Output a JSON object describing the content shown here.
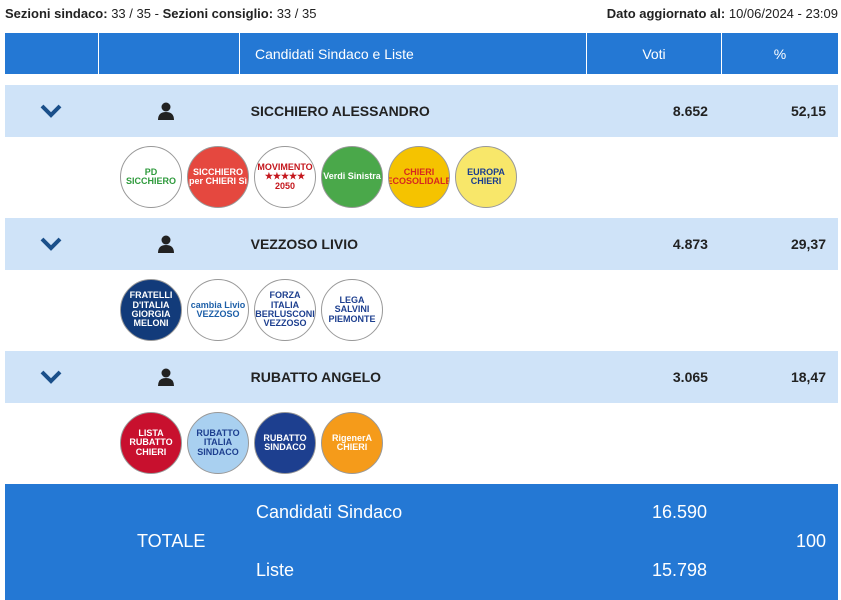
{
  "status": {
    "sez_sindaco_label": "Sezioni sindaco:",
    "sez_sindaco": "33 / 35",
    "sep": "-",
    "sez_consiglio_label": "Sezioni consiglio:",
    "sez_consiglio": "33 / 35",
    "updated_label": "Dato aggiornato al:",
    "updated": "10/06/2024 - 23:09"
  },
  "header": {
    "candidates": "Candidati Sindaco e Liste",
    "votes": "Voti",
    "percent": "%"
  },
  "icons": {
    "expand": "chevron-down-icon",
    "person": "user-icon"
  },
  "colors": {
    "header": "#2478d4",
    "candidate_row": "#cfe3f8",
    "chevron": "#1a4f8a"
  },
  "candidates": [
    {
      "name": "SICCHIERO ALESSANDRO",
      "votes": "8.652",
      "percent": "52,15",
      "lists": [
        {
          "name": "partito-democratico",
          "logo_text": "PD SICCHIERO",
          "bg": "#ffffff",
          "fg": "#2e9a3c"
        },
        {
          "name": "sicchiero-per-chieri",
          "logo_text": "SICCHIERO per CHIERI Sì",
          "bg": "#e5483f",
          "fg": "#ffffff"
        },
        {
          "name": "movimento-2050",
          "logo_text": "MOVIMENTO ★★★★★ 2050",
          "bg": "#ffffff",
          "fg": "#c4161c"
        },
        {
          "name": "alleanza-verdi-sinistra",
          "logo_text": "Verdi Sinistra",
          "bg": "#4aa84a",
          "fg": "#ffffff"
        },
        {
          "name": "chieri-ecosolidale",
          "logo_text": "CHIERI ECOSOLIDALE",
          "bg": "#f5c300",
          "fg": "#d6281f"
        },
        {
          "name": "europa-chieri",
          "logo_text": "EUROPA CHIERI",
          "bg": "#f8e76a",
          "fg": "#1a3d8f"
        }
      ]
    },
    {
      "name": "VEZZOSO LIVIO",
      "votes": "4.873",
      "percent": "29,37",
      "lists": [
        {
          "name": "fratelli-italia",
          "logo_text": "FRATELLI D'ITALIA GIORGIA MELONI",
          "bg": "#123b7a",
          "fg": "#ffffff"
        },
        {
          "name": "chieri-cambia",
          "logo_text": "cambia Livio VEZZOSO",
          "bg": "#ffffff",
          "fg": "#1d5fa8"
        },
        {
          "name": "forza-italia",
          "logo_text": "FORZA ITALIA BERLUSCONI VEZZOSO",
          "bg": "#ffffff",
          "fg": "#1d3f8f"
        },
        {
          "name": "lega",
          "logo_text": "LEGA SALVINI PIEMONTE",
          "bg": "#ffffff",
          "fg": "#1d3f8f"
        }
      ]
    },
    {
      "name": "RUBATTO ANGELO",
      "votes": "3.065",
      "percent": "18,47",
      "lists": [
        {
          "name": "lista-rubatto",
          "logo_text": "LISTA RUBATTO CHIERI",
          "bg": "#c8102e",
          "fg": "#ffffff"
        },
        {
          "name": "rubatto-italia-sindaco",
          "logo_text": "RUBATTO ITALIA SINDACO",
          "bg": "#a9d0f0",
          "fg": "#1d3f8f"
        },
        {
          "name": "progetto-ospedale",
          "logo_text": "RUBATTO SINDACO",
          "bg": "#1d3f8f",
          "fg": "#ffffff"
        },
        {
          "name": "rigenera-chieri",
          "logo_text": "RigenerA CHIERI",
          "bg": "#f59b1a",
          "fg": "#ffffff"
        }
      ]
    }
  ],
  "totals": {
    "label": "TOTALE",
    "sindaco_label": "Candidati Sindaco",
    "sindaco_votes": "16.590",
    "liste_label": "Liste",
    "liste_votes": "15.798",
    "percent": "100"
  }
}
